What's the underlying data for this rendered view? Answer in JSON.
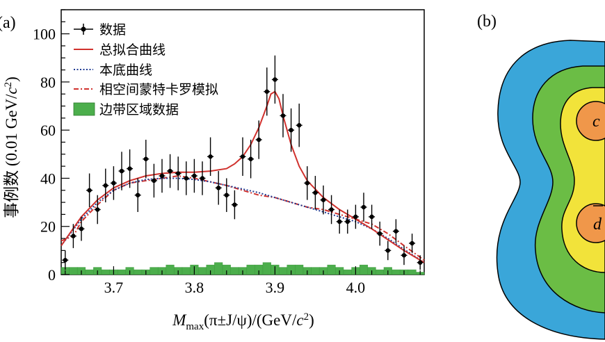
{
  "panel_a": {
    "label": "(a)",
    "ylabel_main": "事例数 (0.01 GeV/",
    "ylabel_unit": "c",
    "ylabel_sup": "2",
    "ylabel_close": ")",
    "xlabel_M": "M",
    "xlabel_sub": "max",
    "xlabel_rest": "(π±J/ψ)/(GeV/",
    "xlabel_c": "c",
    "xlabel_sup": "2",
    "xlabel_close": ")"
  },
  "panel_b": {
    "label": "(b)",
    "quark_top": "c",
    "quark_bottom": "d",
    "colors": [
      "#3aa6d9",
      "#6bbd45",
      "#f2e33a",
      "#f0974a"
    ]
  },
  "chart_data": {
    "type": "line",
    "xlim": [
      3.635,
      4.085
    ],
    "ylim": [
      0,
      110
    ],
    "xticks": [
      3.7,
      3.8,
      3.9,
      4.0
    ],
    "xtick_labels": [
      "3.7",
      "3.8",
      "3.9",
      "4.0"
    ],
    "yticks": [
      0,
      20,
      40,
      60,
      80,
      100
    ],
    "ytick_labels": [
      "0",
      "20",
      "40",
      "60",
      "80",
      "100"
    ],
    "legend": {
      "placement": "top-left",
      "entries": [
        {
          "label": "数据",
          "style": "points",
          "color": "#000000"
        },
        {
          "label": "总拟合曲线",
          "style": "solid",
          "color": "#d0312d"
        },
        {
          "label": "本底曲线",
          "style": "dotted",
          "color": "#1f3a93"
        },
        {
          "label": "相空间蒙特卡罗模拟",
          "style": "dashdot",
          "color": "#d0312d"
        },
        {
          "label": "边带区域数据",
          "style": "fill",
          "color": "#4cae4c"
        }
      ]
    },
    "data_points": {
      "x": [
        3.64,
        3.65,
        3.66,
        3.67,
        3.68,
        3.69,
        3.7,
        3.71,
        3.72,
        3.73,
        3.74,
        3.75,
        3.76,
        3.77,
        3.78,
        3.79,
        3.8,
        3.81,
        3.82,
        3.83,
        3.84,
        3.85,
        3.86,
        3.87,
        3.88,
        3.89,
        3.9,
        3.91,
        3.92,
        3.93,
        3.94,
        3.95,
        3.96,
        3.97,
        3.98,
        3.99,
        4.0,
        4.01,
        4.02,
        4.03,
        4.04,
        4.05,
        4.06,
        4.07,
        4.08
      ],
      "y": [
        6,
        16,
        19,
        35,
        27,
        37,
        38,
        43,
        44,
        33,
        48,
        39,
        41,
        43,
        42,
        40,
        41,
        40,
        49,
        36,
        33,
        29,
        49,
        48,
        56,
        76,
        81,
        66,
        60,
        62,
        38,
        34,
        31,
        27,
        22,
        22,
        24,
        28,
        24,
        17,
        10,
        18,
        8,
        13,
        5
      ],
      "err": [
        4,
        5,
        5,
        7,
        6,
        7,
        7,
        8,
        8,
        7,
        8,
        7,
        7,
        7,
        7,
        7,
        7,
        7,
        8,
        7,
        7,
        6,
        8,
        8,
        8,
        10,
        10,
        9,
        9,
        9,
        7,
        7,
        6,
        6,
        5,
        5,
        5,
        6,
        5,
        5,
        4,
        5,
        4,
        4,
        3
      ]
    },
    "total_fit": {
      "x": [
        3.635,
        3.66,
        3.68,
        3.7,
        3.72,
        3.74,
        3.76,
        3.78,
        3.8,
        3.82,
        3.84,
        3.85,
        3.86,
        3.87,
        3.88,
        3.89,
        3.895,
        3.9,
        3.905,
        3.91,
        3.92,
        3.93,
        3.94,
        3.96,
        3.98,
        4.0,
        4.02,
        4.04,
        4.06,
        4.085
      ],
      "y": [
        12,
        24,
        31,
        36,
        39,
        41,
        42,
        42.5,
        42.5,
        43,
        44,
        46,
        49,
        54,
        61,
        70,
        75,
        76,
        73,
        66,
        54,
        45,
        39,
        32,
        27,
        23,
        19,
        14.5,
        10,
        5
      ]
    },
    "background": {
      "x": [
        3.635,
        3.66,
        3.68,
        3.7,
        3.72,
        3.74,
        3.76,
        3.78,
        3.8,
        3.82,
        3.84,
        3.86,
        3.88,
        3.9,
        3.92,
        3.94,
        3.96,
        3.98,
        4.0,
        4.02,
        4.04,
        4.06,
        4.085
      ],
      "y": [
        12,
        23,
        30,
        35,
        38,
        39.5,
        40,
        40,
        39.5,
        38.5,
        37,
        35.5,
        34,
        32,
        30,
        28,
        26,
        24,
        22,
        19,
        15,
        10.5,
        5
      ]
    },
    "phase_space_mc": {
      "x": [
        3.635,
        3.65,
        3.66,
        3.68,
        3.7,
        3.72,
        3.74,
        3.76,
        3.78,
        3.8,
        3.82,
        3.84,
        3.86,
        3.88,
        3.9,
        3.92,
        3.94,
        3.96,
        3.98,
        4.0,
        4.02,
        4.04,
        4.06,
        4.085
      ],
      "y": [
        14,
        16,
        22,
        29,
        35,
        38,
        39,
        40,
        41,
        40,
        38.5,
        37,
        35,
        33,
        32,
        30,
        28,
        27,
        25,
        23,
        21,
        17,
        12,
        6
      ]
    },
    "sideband": {
      "x_start": 3.635,
      "bin_width": 0.01,
      "values": [
        3,
        3,
        3,
        2,
        3,
        2,
        2,
        2,
        3,
        2,
        2,
        3,
        3,
        4,
        3,
        3,
        4,
        3,
        4,
        5,
        4,
        3,
        3,
        4,
        4,
        5,
        4,
        3,
        4,
        4,
        3,
        3,
        3,
        4,
        3,
        2,
        3,
        4,
        3,
        2,
        3,
        2,
        2,
        2,
        1
      ]
    }
  }
}
